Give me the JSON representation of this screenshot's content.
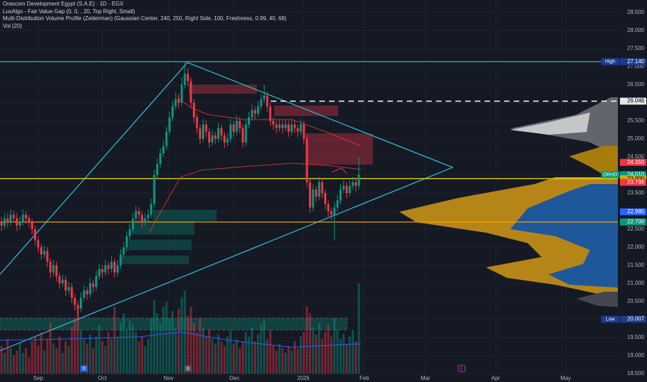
{
  "chart_data": {
    "type": "candlestick",
    "title": "Orascom Development Egypt (S.A.E) · 1D · EGX",
    "annotations": [
      "LuxAlgo - Fair Value Gap (0, 0, , 20, Top Right, Small)",
      "Multi-Distribution Volume Profile (Zeiiierman) (Gaussian Center, 240, 250, Right Side, 100, Freshness, 0.99, 40, 68)",
      "Vol (20)"
    ],
    "events": [
      "D",
      "E",
      "E"
    ],
    "up_color": "#089981",
    "down_color": "#f23645",
    "grid": true,
    "xlim": [
      -0.5,
      201.8
    ],
    "xticks": [
      {
        "value": 12,
        "label": "Sep"
      },
      {
        "value": 33,
        "label": "Oct"
      },
      {
        "value": 54.7,
        "label": "Nov"
      },
      {
        "value": 76.3,
        "label": "Dec"
      },
      {
        "value": 98.8,
        "label": "2026"
      },
      {
        "value": 118.8,
        "label": "Feb"
      },
      {
        "value": 138.8,
        "label": "Mar"
      },
      {
        "value": 161.8,
        "label": "Apr"
      },
      {
        "value": 184.7,
        "label": "May"
      }
    ],
    "ylim": [
      18.5,
      28.846
    ],
    "yticks": [
      {
        "value": 18.5,
        "label": "18.500"
      },
      {
        "value": 19,
        "label": "19.000"
      },
      {
        "value": 19.5,
        "label": "19.500"
      },
      {
        "value": 20,
        "label": "20.000"
      },
      {
        "value": 20.5,
        "label": "20.500"
      },
      {
        "value": 21,
        "label": "21.000"
      },
      {
        "value": 21.5,
        "label": "21.500"
      },
      {
        "value": 22,
        "label": "22.000"
      },
      {
        "value": 22.5,
        "label": "22.500"
      },
      {
        "value": 23,
        "label": "23.000"
      },
      {
        "value": 23.5,
        "label": "23.500"
      },
      {
        "value": 24,
        "label": "24.000"
      },
      {
        "value": 24.5,
        "label": "24.500"
      },
      {
        "value": 25,
        "label": "25.000"
      },
      {
        "value": 25.5,
        "label": "25.500"
      },
      {
        "value": 26,
        "label": "26.000"
      },
      {
        "value": 26.5,
        "label": "26.500"
      },
      {
        "value": 27,
        "label": "27.000"
      },
      {
        "value": 27.5,
        "label": "27.500"
      },
      {
        "value": 28,
        "label": "28.000"
      },
      {
        "value": 28.5,
        "label": "28.500"
      }
    ],
    "open": [
      22.7,
      22.6,
      22.8,
      22.7,
      22.9,
      22.8,
      22.6,
      22.7,
      22.9,
      22.8,
      22.7,
      22.5,
      22.2,
      22.0,
      21.8,
      21.9,
      21.6,
      21.3,
      21.5,
      21.2,
      21.0,
      21.1,
      20.8,
      20.9,
      20.6,
      20.4,
      20.3,
      20.6,
      20.8,
      20.7,
      21.0,
      20.9,
      21.2,
      21.4,
      21.3,
      21.5,
      21.4,
      21.6,
      21.3,
      21.5,
      21.8,
      22.0,
      22.3,
      22.5,
      22.8,
      23.0,
      22.9,
      22.7,
      22.8,
      22.9,
      23.2,
      24.0,
      24.3,
      24.6,
      24.8,
      25.2,
      25.6,
      25.9,
      26.1,
      26.0,
      26.5,
      26.8,
      26.6,
      26.0,
      25.6,
      25.3,
      25.0,
      25.4,
      25.2,
      24.9,
      25.1,
      25.0,
      25.3,
      25.1,
      24.9,
      25.0,
      25.4,
      25.2,
      25.5,
      25.3,
      24.9,
      25.4,
      25.6,
      25.8,
      25.7,
      25.9,
      26.1,
      26.2,
      25.9,
      25.5,
      25.4,
      25.3,
      25.4,
      25.3,
      25.4,
      25.2,
      25.4,
      25.3,
      25.2,
      25.4,
      25.0,
      23.8,
      23.1,
      23.6,
      23.4,
      23.8,
      23.5,
      23.2,
      23.0,
      22.9,
      23.1,
      23.3,
      23.6,
      23.7,
      23.5,
      23.7,
      23.8,
      23.7
    ],
    "high": [
      22.85,
      22.95,
      22.95,
      23.05,
      23.0,
      22.95,
      22.85,
      23.05,
      23.0,
      22.9,
      22.8,
      22.6,
      22.3,
      22.1,
      22.05,
      22.0,
      21.7,
      21.65,
      21.6,
      21.3,
      21.25,
      21.2,
      21.05,
      21.0,
      20.7,
      20.5,
      20.75,
      20.95,
      20.9,
      21.15,
      21.1,
      21.35,
      21.55,
      21.5,
      21.65,
      21.6,
      21.75,
      21.7,
      21.65,
      21.95,
      22.15,
      22.45,
      22.65,
      22.95,
      23.15,
      23.1,
      23.0,
      22.95,
      23.05,
      23.35,
      24.15,
      24.45,
      24.75,
      24.95,
      25.35,
      25.75,
      26.05,
      26.3,
      26.25,
      26.7,
      27.14,
      26.95,
      26.7,
      26.1,
      25.7,
      25.4,
      25.55,
      25.5,
      25.3,
      25.25,
      25.2,
      25.45,
      25.4,
      25.2,
      25.15,
      25.55,
      25.5,
      25.65,
      25.6,
      25.4,
      25.55,
      25.75,
      25.95,
      25.9,
      26.05,
      26.25,
      26.5,
      26.3,
      26.0,
      25.6,
      25.5,
      25.55,
      25.5,
      25.55,
      25.5,
      25.55,
      25.5,
      25.4,
      25.55,
      25.5,
      25.1,
      23.9,
      23.75,
      23.7,
      23.95,
      23.9,
      23.6,
      23.3,
      23.1,
      23.25,
      23.45,
      23.75,
      23.85,
      23.8,
      23.85,
      23.95,
      23.9,
      24.5
    ],
    "low": [
      22.45,
      22.5,
      22.55,
      22.6,
      22.7,
      22.45,
      22.5,
      22.6,
      22.65,
      22.55,
      22.35,
      22.05,
      21.85,
      21.65,
      21.7,
      21.45,
      21.15,
      21.2,
      21.05,
      20.85,
      20.9,
      20.65,
      20.7,
      20.45,
      20.25,
      20.01,
      20.2,
      20.5,
      20.55,
      20.6,
      20.75,
      20.8,
      21.1,
      21.15,
      21.2,
      21.25,
      21.3,
      21.15,
      21.2,
      21.4,
      21.7,
      21.9,
      22.2,
      22.4,
      22.7,
      22.75,
      22.55,
      22.6,
      22.7,
      22.8,
      23.1,
      23.9,
      24.2,
      24.5,
      24.7,
      25.1,
      25.5,
      25.8,
      25.85,
      25.9,
      26.4,
      26.45,
      25.85,
      25.45,
      25.15,
      24.85,
      24.9,
      25.05,
      24.75,
      24.8,
      24.85,
      24.9,
      24.95,
      24.75,
      24.8,
      24.9,
      25.05,
      25.1,
      25.15,
      24.75,
      24.8,
      25.3,
      25.5,
      25.55,
      25.6,
      25.8,
      26.0,
      25.75,
      25.35,
      25.25,
      25.15,
      25.2,
      25.15,
      25.2,
      25.05,
      25.1,
      25.15,
      25.05,
      25.1,
      24.85,
      23.65,
      22.95,
      23.0,
      23.25,
      23.3,
      23.35,
      23.05,
      22.85,
      22.75,
      22.2,
      23.0,
      23.2,
      23.5,
      23.35,
      23.4,
      23.6,
      23.55,
      23.6
    ],
    "close": [
      22.6,
      22.8,
      22.7,
      22.9,
      22.8,
      22.6,
      22.7,
      22.9,
      22.8,
      22.7,
      22.5,
      22.2,
      22.0,
      21.8,
      21.9,
      21.6,
      21.3,
      21.5,
      21.2,
      21.0,
      21.1,
      20.8,
      20.9,
      20.6,
      20.4,
      20.3,
      20.6,
      20.8,
      20.7,
      21.0,
      20.9,
      21.2,
      21.4,
      21.3,
      21.5,
      21.4,
      21.6,
      21.3,
      21.5,
      21.8,
      22.0,
      22.3,
      22.5,
      22.8,
      23.0,
      22.9,
      22.7,
      22.8,
      22.9,
      23.2,
      24.0,
      24.3,
      24.6,
      24.8,
      25.2,
      25.6,
      25.9,
      26.1,
      26.0,
      26.5,
      26.8,
      26.6,
      26.0,
      25.6,
      25.3,
      25.0,
      25.4,
      25.2,
      24.9,
      25.1,
      25.0,
      25.3,
      25.1,
      24.9,
      25.0,
      25.4,
      25.2,
      25.5,
      25.3,
      24.9,
      25.4,
      25.6,
      25.8,
      25.7,
      25.9,
      26.1,
      26.2,
      25.9,
      25.5,
      25.4,
      25.3,
      25.4,
      25.3,
      25.4,
      25.2,
      25.4,
      25.3,
      25.2,
      25.4,
      25.0,
      23.8,
      23.1,
      23.6,
      23.4,
      23.8,
      23.5,
      23.2,
      23.0,
      22.9,
      23.1,
      23.3,
      23.6,
      23.7,
      23.5,
      23.7,
      23.8,
      23.7,
      24.01
    ],
    "volume": [
      1.2,
      0.9,
      1.5,
      1.1,
      0.8,
      1.0,
      1.3,
      0.9,
      1.1,
      0.7,
      1.4,
      1.6,
      1.2,
      1.8,
      1.0,
      1.5,
      2.2,
      1.3,
      1.1,
      1.6,
      0.9,
      1.4,
      1.2,
      2.0,
      2.4,
      2.8,
      1.9,
      1.5,
      1.3,
      1.7,
      1.1,
      1.6,
      2.1,
      1.4,
      1.2,
      1.8,
      1.5,
      2.9,
      1.6,
      2.2,
      2.6,
      1.9,
      2.3,
      2.1,
      1.8,
      1.4,
      1.6,
      1.2,
      1.5,
      2.4,
      3.2,
      2.6,
      2.2,
      2.9,
      3.1,
      2.4,
      2.7,
      2.0,
      2.8,
      3.3,
      3.6,
      2.5,
      2.9,
      2.2,
      1.8,
      2.4,
      2.0,
      1.6,
      1.9,
      1.5,
      1.3,
      1.7,
      1.4,
      1.2,
      1.6,
      1.9,
      1.3,
      1.5,
      1.1,
      1.4,
      1.8,
      1.6,
      2.0,
      1.4,
      1.7,
      2.1,
      2.3,
      1.5,
      1.9,
      1.2,
      1.0,
      1.3,
      1.1,
      0.9,
      1.2,
      1.0,
      1.4,
      1.1,
      1.6,
      1.8,
      2.9,
      2.6,
      2.0,
      1.7,
      2.2,
      1.5,
      1.8,
      2.1,
      1.6,
      2.4,
      1.9,
      1.5,
      1.7,
      1.3,
      1.6,
      1.9,
      1.4,
      3.9
    ],
    "levels": {
      "names": [
        "High",
        null,
        null,
        "ORHD",
        null,
        null,
        null,
        null,
        "Low"
      ],
      "values": [
        27.14,
        26.046,
        24.35,
        24.01,
        23.9,
        23.798,
        22.98,
        22.7,
        20.007
      ],
      "value_labels": [
        "27.140",
        "26.046",
        "24.350",
        "24.010",
        "23.900",
        "23.798",
        "22.980",
        "22.700",
        "20.007"
      ],
      "colors": [
        "#1e3a8a",
        "#e6e6e6",
        "#f23645",
        "#089981",
        "#c9b600",
        "#f23645",
        "#2962ff",
        "#089981",
        "#1e3a8a"
      ],
      "lines": [
        "#29b6d6",
        "dashed",
        null,
        null,
        "#e6d800",
        null,
        null,
        "#f5a000",
        null
      ]
    }
  }
}
